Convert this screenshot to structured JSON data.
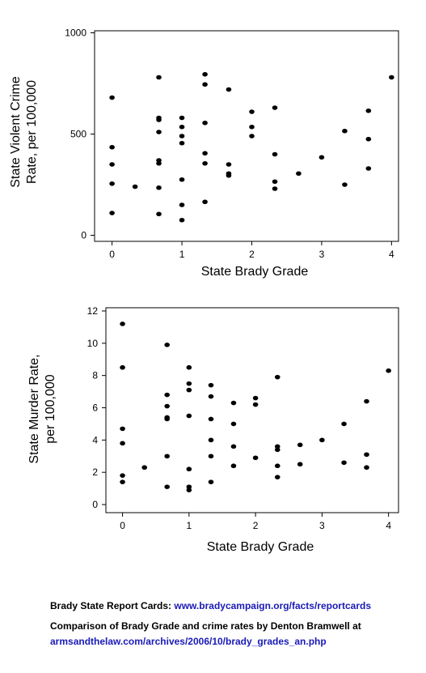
{
  "chart_data": [
    {
      "type": "scatter",
      "title": "",
      "xlabel": "State Brady Grade",
      "ylabel": "State Violent Crime Rate, per 100,000",
      "ylabel_lines": [
        "State Violent Crime",
        "Rate, per 100,000"
      ],
      "xlim": [
        -0.25,
        4.1
      ],
      "ylim": [
        -30,
        1010
      ],
      "xticks": [
        "0",
        "1",
        "2",
        "3",
        "4"
      ],
      "yticks": [
        "0",
        "500",
        "1000"
      ],
      "marker_color": "#000000",
      "points": [
        [
          0,
          680
        ],
        [
          0,
          435
        ],
        [
          0,
          350
        ],
        [
          0,
          255
        ],
        [
          0,
          110
        ],
        [
          0.33,
          240
        ],
        [
          0.67,
          780
        ],
        [
          0.67,
          580
        ],
        [
          0.67,
          570
        ],
        [
          0.67,
          510
        ],
        [
          0.67,
          370
        ],
        [
          0.67,
          355
        ],
        [
          0.67,
          235
        ],
        [
          0.67,
          105
        ],
        [
          1,
          580
        ],
        [
          1,
          535
        ],
        [
          1,
          490
        ],
        [
          1,
          455
        ],
        [
          1,
          275
        ],
        [
          1,
          150
        ],
        [
          1,
          75
        ],
        [
          1.33,
          795
        ],
        [
          1.33,
          745
        ],
        [
          1.33,
          555
        ],
        [
          1.33,
          405
        ],
        [
          1.33,
          355
        ],
        [
          1.33,
          165
        ],
        [
          1.67,
          720
        ],
        [
          1.67,
          350
        ],
        [
          1.67,
          305
        ],
        [
          1.67,
          295
        ],
        [
          2,
          610
        ],
        [
          2,
          535
        ],
        [
          2,
          490
        ],
        [
          2.33,
          630
        ],
        [
          2.33,
          400
        ],
        [
          2.33,
          265
        ],
        [
          2.33,
          230
        ],
        [
          2.67,
          305
        ],
        [
          3,
          385
        ],
        [
          3.33,
          515
        ],
        [
          3.33,
          250
        ],
        [
          3.67,
          615
        ],
        [
          3.67,
          475
        ],
        [
          3.67,
          330
        ],
        [
          4,
          780
        ]
      ]
    },
    {
      "type": "scatter",
      "title": "",
      "xlabel": "State Brady Grade",
      "ylabel": "State Murder Rate, per 100,000",
      "ylabel_lines": [
        "State Murder Rate,",
        "per 100,000"
      ],
      "xlim": [
        -0.25,
        4.15
      ],
      "ylim": [
        -0.5,
        12.2
      ],
      "xticks": [
        "0",
        "1",
        "2",
        "3",
        "4"
      ],
      "yticks": [
        "0",
        "2",
        "4",
        "6",
        "8",
        "10",
        "12"
      ],
      "marker_color": "#000000",
      "points": [
        [
          0,
          11.2
        ],
        [
          0,
          8.5
        ],
        [
          0,
          4.7
        ],
        [
          0,
          3.8
        ],
        [
          0,
          1.8
        ],
        [
          0,
          1.4
        ],
        [
          0.33,
          2.3
        ],
        [
          0.67,
          9.9
        ],
        [
          0.67,
          6.8
        ],
        [
          0.67,
          6.1
        ],
        [
          0.67,
          5.4
        ],
        [
          0.67,
          5.3
        ],
        [
          0.67,
          3.0
        ],
        [
          0.67,
          1.1
        ],
        [
          1,
          8.5
        ],
        [
          1,
          7.5
        ],
        [
          1,
          7.1
        ],
        [
          1,
          5.5
        ],
        [
          1,
          2.2
        ],
        [
          1,
          1.1
        ],
        [
          1,
          0.9
        ],
        [
          1.33,
          7.4
        ],
        [
          1.33,
          6.7
        ],
        [
          1.33,
          5.3
        ],
        [
          1.33,
          4.0
        ],
        [
          1.33,
          3.0
        ],
        [
          1.33,
          1.4
        ],
        [
          1.67,
          6.3
        ],
        [
          1.67,
          5.0
        ],
        [
          1.67,
          3.6
        ],
        [
          1.67,
          2.4
        ],
        [
          2,
          6.6
        ],
        [
          2,
          6.2
        ],
        [
          2,
          2.9
        ],
        [
          2.33,
          7.9
        ],
        [
          2.33,
          3.6
        ],
        [
          2.33,
          3.4
        ],
        [
          2.33,
          2.4
        ],
        [
          2.33,
          1.7
        ],
        [
          2.67,
          3.7
        ],
        [
          2.67,
          2.5
        ],
        [
          3,
          4.0
        ],
        [
          3.33,
          5.0
        ],
        [
          3.33,
          2.6
        ],
        [
          3.67,
          6.4
        ],
        [
          3.67,
          3.1
        ],
        [
          3.67,
          2.3
        ],
        [
          4,
          8.3
        ]
      ]
    }
  ],
  "captions": {
    "line1_label": "Brady State Report Cards: ",
    "line1_link": "www.bradycampaign.org/facts/reportcards",
    "line2": "Comparison of Brady Grade and crime rates by Denton Bramwell at",
    "line3_link": "armsandthelaw.com/archives/2006/10/brady_grades_an.php",
    "link_color": "#1a1ab8"
  }
}
